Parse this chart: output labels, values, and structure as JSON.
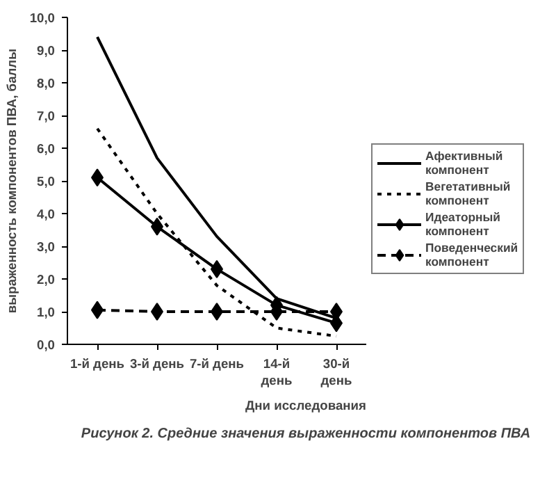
{
  "chart_data": {
    "type": "line",
    "categories": [
      "1-й день",
      "3-й день",
      "7-й день",
      "14-й\nдень",
      "30-й\nдень"
    ],
    "xlabel": "Дни исследования",
    "ylabel": "выраженность компонентов ПВА, баллы",
    "ylim": [
      0,
      10
    ],
    "yticks": [
      {
        "value": 0,
        "label": "0,0"
      },
      {
        "value": 1,
        "label": "1,0"
      },
      {
        "value": 2,
        "label": "2,0"
      },
      {
        "value": 3,
        "label": "3,0"
      },
      {
        "value": 4,
        "label": "4,0"
      },
      {
        "value": 5,
        "label": "5,0"
      },
      {
        "value": 6,
        "label": "6,0"
      },
      {
        "value": 7,
        "label": "7,0"
      },
      {
        "value": 8,
        "label": "8,0"
      },
      {
        "value": 9,
        "label": "9,0"
      },
      {
        "value": 10,
        "label": "10,0"
      }
    ],
    "legend": "right",
    "grid": false,
    "annotations": [
      "Рисунок 2. Средние значения выраженности компонентов ПВА"
    ],
    "series": [
      {
        "name": "Афективный компонент",
        "color": "#000000",
        "line_style": "solid",
        "marker": "none",
        "values": [
          9.4,
          5.7,
          3.3,
          1.4,
          0.8
        ]
      },
      {
        "name": "Вегетативный компонент",
        "color": "#000000",
        "line_style": "dotted",
        "marker": "none",
        "values": [
          6.6,
          4.0,
          1.8,
          0.5,
          0.25
        ]
      },
      {
        "name": "Идеаторный компонент",
        "color": "#000000",
        "line_style": "solid",
        "marker": "diamond",
        "values": [
          5.1,
          3.6,
          2.3,
          1.2,
          0.65
        ]
      },
      {
        "name": "Поведенческий компонент",
        "color": "#000000",
        "line_style": "dashed",
        "marker": "diamond",
        "values": [
          1.05,
          1.0,
          1.0,
          1.0,
          1.0
        ]
      }
    ]
  }
}
